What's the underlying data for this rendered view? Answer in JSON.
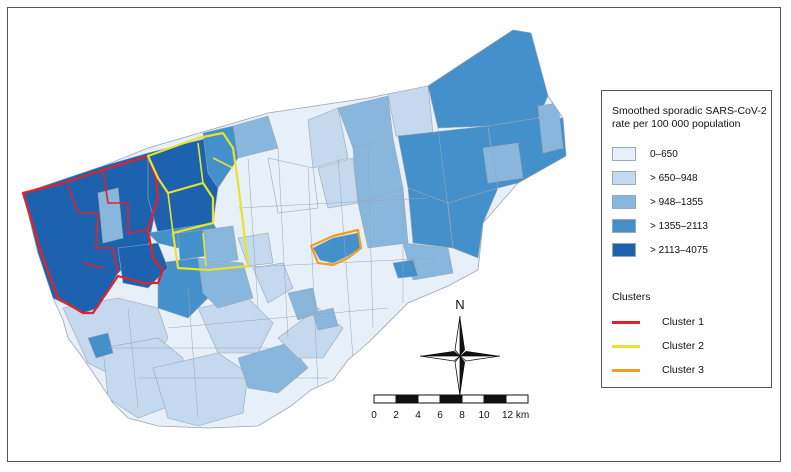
{
  "legend": {
    "title_line1": "Smoothed sporadic SARS-CoV-2",
    "title_line2": "rate per 100 000 population",
    "classes": [
      {
        "label": "0–650",
        "color": "#e7f0f9"
      },
      {
        "label": "> 650–948",
        "color": "#c4d9ee"
      },
      {
        "label": "> 948–1355",
        "color": "#88b6dd"
      },
      {
        "label": "> 1355–2113",
        "color": "#4390ca"
      },
      {
        "label": "> 2113–4075",
        "color": "#1d62ae"
      }
    ],
    "clusters_title": "Clusters",
    "clusters": [
      {
        "label": "Cluster 1",
        "color": "#e4202a"
      },
      {
        "label": "Cluster 2",
        "color": "#e5e42b"
      },
      {
        "label": "Cluster 3",
        "color": "#f39c1f"
      }
    ]
  },
  "north_arrow": {
    "label": "N"
  },
  "scale_bar": {
    "ticks": [
      "0",
      "2",
      "4",
      "6",
      "8",
      "10",
      "12 km"
    ]
  }
}
